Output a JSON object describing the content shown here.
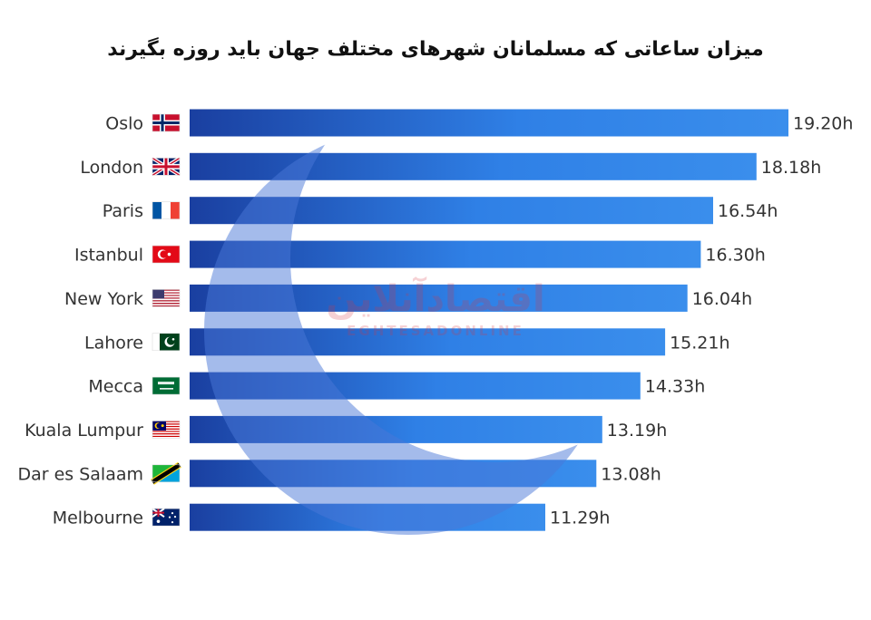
{
  "chart_data": {
    "type": "bar",
    "orientation": "horizontal",
    "title": "میزان ساعاتی که مسلمانان شهرهای مختلف جهان باید روزه بگیرند",
    "categories": [
      "Oslo",
      "London",
      "Paris",
      "Istanbul",
      "New York",
      "Lahore",
      "Mecca",
      "Kuala Lumpur",
      "Dar es Salaam",
      "Melbourne"
    ],
    "value_labels": [
      "19.20h",
      "18.18h",
      "16.54h",
      "16.30h",
      "16.04h",
      "15.21h",
      "14.33h",
      "13.19h",
      "13.08h",
      "11.29h"
    ],
    "values": [
      19.33,
      18.3,
      16.9,
      16.5,
      16.07,
      15.35,
      14.55,
      13.32,
      13.13,
      11.48
    ],
    "value_unit": "h",
    "flags": [
      "norway-flag-icon",
      "uk-flag-icon",
      "france-flag-icon",
      "turkey-flag-icon",
      "usa-flag-icon",
      "pakistan-flag-icon",
      "saudi-flag-icon",
      "malaysia-flag-icon",
      "tanzania-flag-icon",
      "australia-flag-icon"
    ],
    "xlim": [
      0,
      19.33
    ],
    "grid": false,
    "legend": "none",
    "colors": {
      "bar_light": "#2f80e6",
      "bar_dark": "#1a3fa0",
      "crescent": "#4a78d8",
      "text": "#333333"
    }
  },
  "watermark": {
    "logo": "اقتصادآنلاین",
    "text": "EGHTESADONLINE"
  }
}
